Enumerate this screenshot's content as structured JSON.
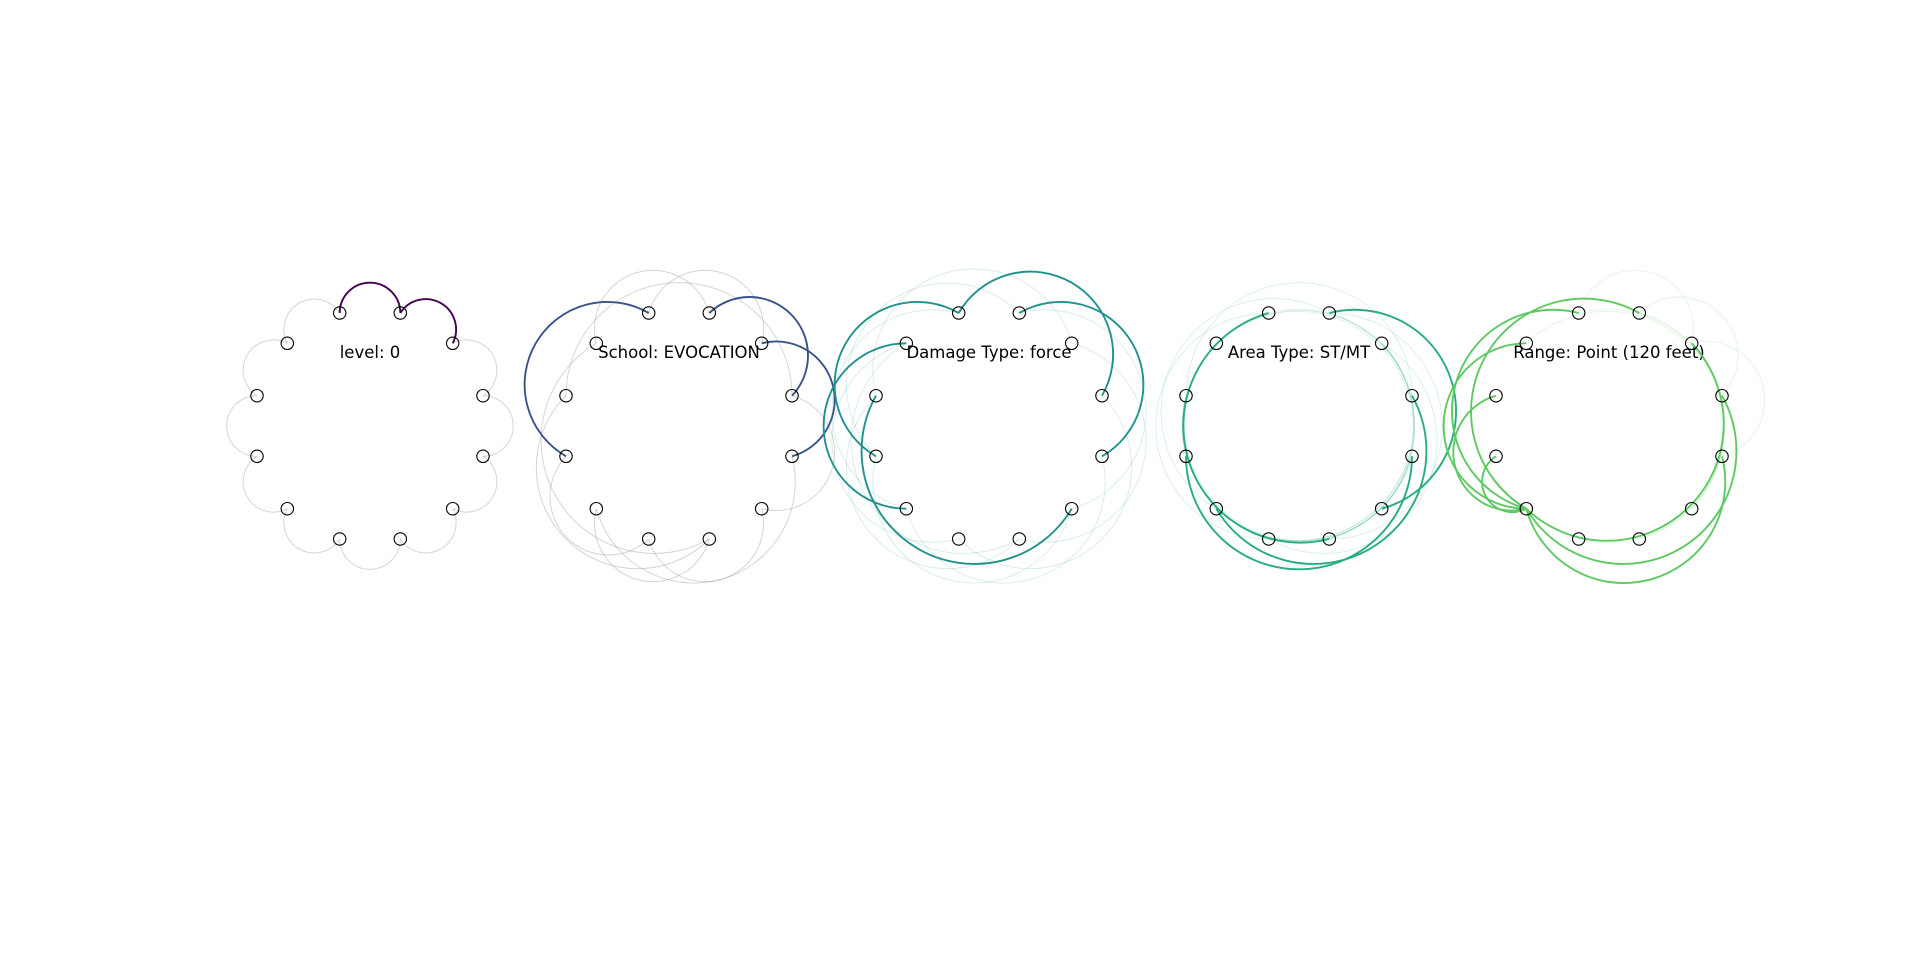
{
  "chart_data": [
    {
      "type": "arc-circle",
      "title": "level: 0",
      "color": "#440154",
      "n_points": 12,
      "highlight_arcs": [
        [
          0,
          1
        ],
        [
          1,
          2
        ]
      ],
      "background_arcs": [
        [
          2,
          3
        ],
        [
          3,
          4
        ],
        [
          4,
          5
        ],
        [
          5,
          6
        ],
        [
          6,
          7
        ],
        [
          7,
          8
        ],
        [
          8,
          9
        ],
        [
          9,
          10
        ],
        [
          10,
          11
        ],
        [
          11,
          0
        ]
      ]
    },
    {
      "type": "arc-circle",
      "title": "School: EVOCATION",
      "color": "#3b528b",
      "n_points": 12,
      "highlight_arcs": [
        [
          0,
          9
        ],
        [
          1,
          3
        ],
        [
          2,
          4
        ]
      ],
      "background_arcs": [
        [
          0,
          2
        ],
        [
          1,
          11
        ],
        [
          3,
          5
        ],
        [
          4,
          8
        ],
        [
          5,
          7
        ],
        [
          6,
          10
        ],
        [
          6,
          8
        ],
        [
          7,
          9
        ],
        [
          10,
          3
        ],
        [
          11,
          6
        ]
      ]
    },
    {
      "type": "arc-circle",
      "title": "Damage Type: force",
      "color": "#21918c",
      "n_points": 12,
      "highlight_arcs": [
        [
          0,
          3
        ],
        [
          11,
          8
        ],
        [
          1,
          4
        ],
        [
          10,
          5
        ],
        [
          0,
          9
        ]
      ],
      "background_arcs": [
        [
          2,
          6
        ],
        [
          3,
          7
        ],
        [
          4,
          8
        ],
        [
          5,
          9
        ],
        [
          6,
          10
        ],
        [
          7,
          11
        ],
        [
          8,
          0
        ],
        [
          9,
          1
        ],
        [
          1,
          5
        ],
        [
          2,
          10
        ],
        [
          6,
          11
        ]
      ]
    },
    {
      "type": "arc-circle",
      "title": "Area Type: ST/MT",
      "color": "#27ad81",
      "n_points": 12,
      "highlight_arcs": [
        [
          0,
          6
        ],
        [
          1,
          5
        ],
        [
          9,
          4
        ],
        [
          8,
          3
        ]
      ],
      "background_arcs": [
        [
          2,
          7
        ],
        [
          3,
          9
        ],
        [
          4,
          10
        ],
        [
          5,
          11
        ],
        [
          6,
          0
        ],
        [
          7,
          1
        ],
        [
          8,
          2
        ],
        [
          10,
          4
        ],
        [
          11,
          5
        ],
        [
          0,
          7
        ],
        [
          1,
          8
        ],
        [
          2,
          8
        ],
        [
          3,
          10
        ],
        [
          6,
          1
        ]
      ]
    },
    {
      "type": "arc-circle",
      "title": "Range: Point (120 feet)",
      "color": "#5ec962",
      "n_points": 12,
      "highlight_arcs": [
        [
          0,
          8
        ],
        [
          1,
          8
        ],
        [
          2,
          8
        ],
        [
          3,
          8
        ],
        [
          4,
          8
        ],
        [
          11,
          8
        ],
        [
          10,
          8
        ],
        [
          9,
          8
        ]
      ],
      "background_arcs": [
        [
          5,
          11
        ],
        [
          6,
          0
        ],
        [
          7,
          1
        ],
        [
          0,
          2
        ],
        [
          1,
          3
        ],
        [
          2,
          4
        ]
      ]
    }
  ]
}
